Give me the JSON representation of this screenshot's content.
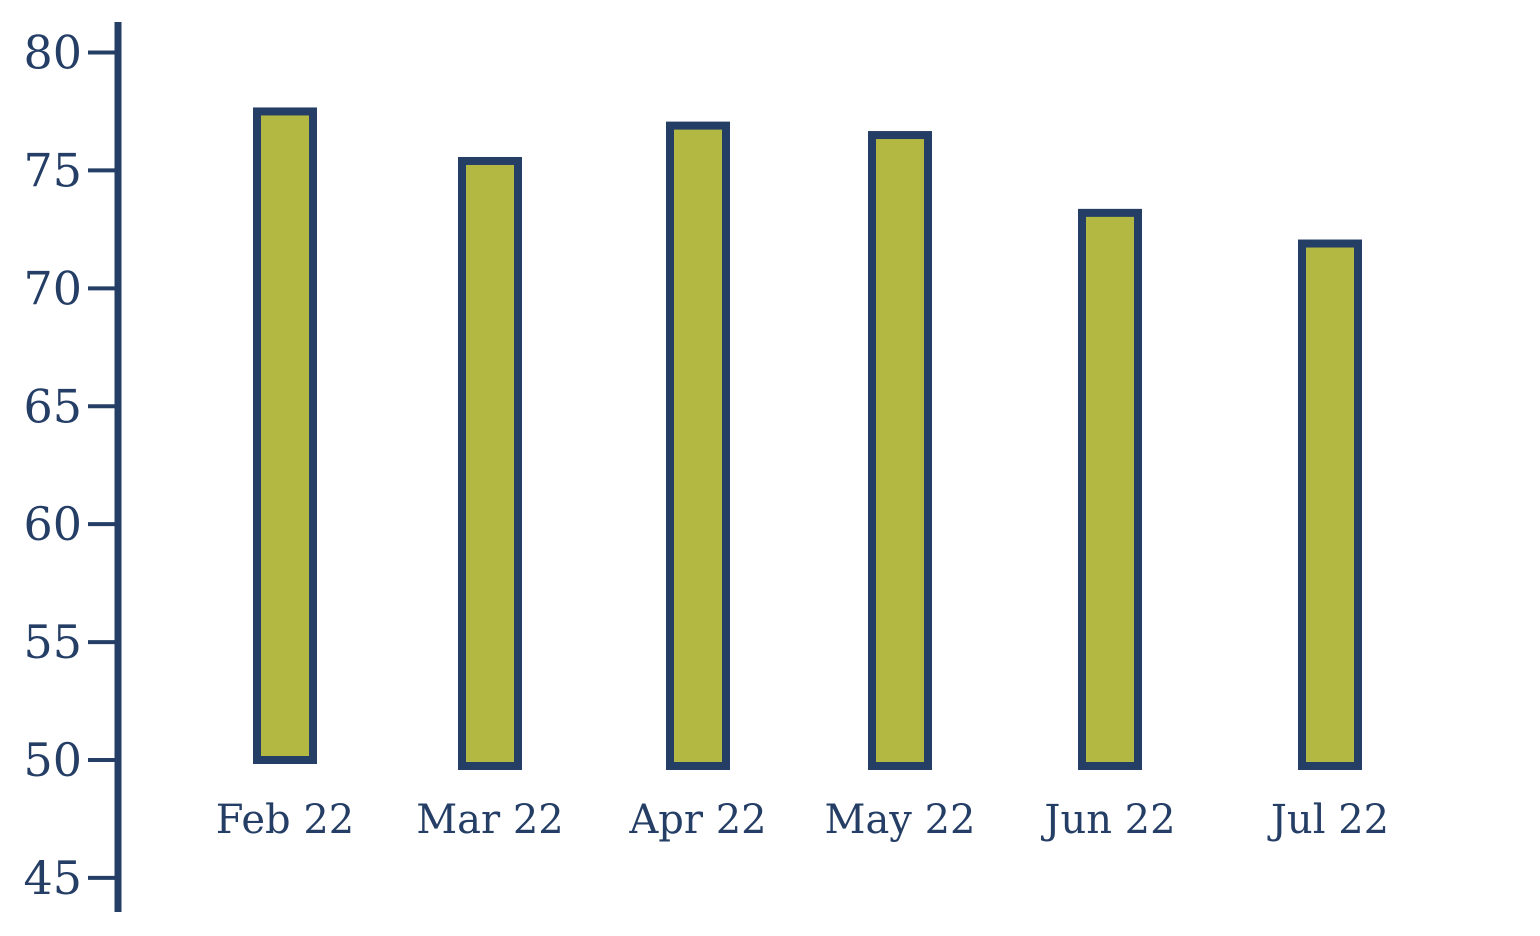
{
  "chart_data": {
    "type": "bar",
    "title": "",
    "xlabel": "",
    "ylabel": "",
    "categories": [
      "Feb 22",
      "Mar 22",
      "Apr 22",
      "May 22",
      "Jun 22",
      "Jul 22"
    ],
    "values": [
      77.5,
      75.4,
      76.9,
      76.5,
      73.2,
      71.9
    ],
    "ylim": [
      45,
      80
    ],
    "yticks": [
      80,
      75,
      70,
      65,
      60,
      55,
      50,
      45
    ],
    "bar_baseline": 50,
    "grid": false,
    "colors": {
      "bar_fill": "#b3b843",
      "bar_stroke": "#253e66",
      "axis": "#253e66",
      "text": "#253e66"
    }
  }
}
